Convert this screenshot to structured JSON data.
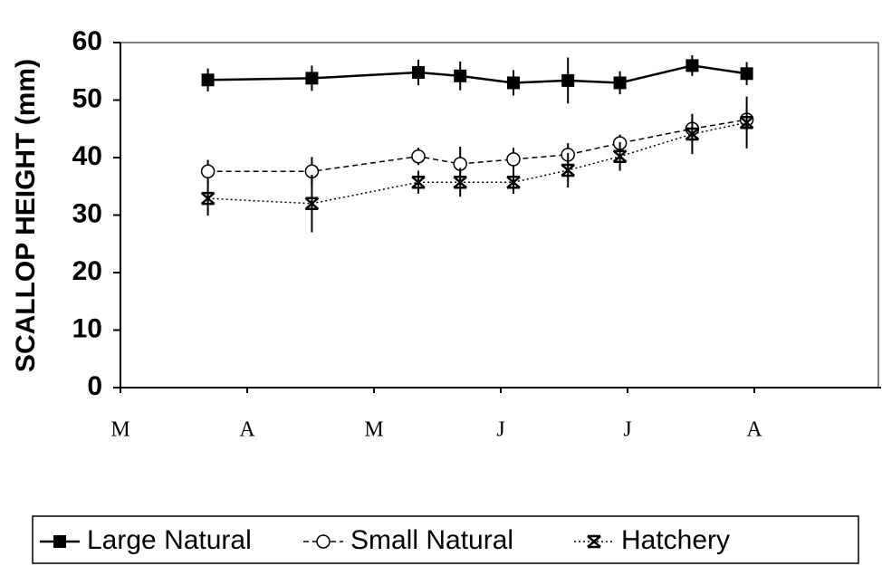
{
  "chart_data": {
    "type": "line",
    "ylabel": "SCALLOP HEIGHT (mm)",
    "xlim": [
      0,
      6
    ],
    "xticks": [
      {
        "value": 0,
        "label": "M"
      },
      {
        "value": 1,
        "label": "A"
      },
      {
        "value": 2,
        "label": "M"
      },
      {
        "value": 3,
        "label": "J"
      },
      {
        "value": 4,
        "label": "J"
      },
      {
        "value": 5,
        "label": "A"
      }
    ],
    "ylim": [
      0,
      60
    ],
    "yticks": [
      0,
      10,
      20,
      30,
      40,
      50,
      60
    ],
    "x": [
      0.69,
      1.51,
      2.35,
      2.68,
      3.1,
      3.53,
      3.94,
      4.51,
      4.94
    ],
    "series": [
      {
        "name": "Large Natural",
        "color": "#000000",
        "line_style": "solid",
        "marker": "square",
        "values": [
          53.5,
          53.8,
          54.8,
          54.2,
          53,
          53.4,
          53,
          56,
          54.6
        ],
        "errors": [
          2,
          2.2,
          2.2,
          2.5,
          2.2,
          4,
          2,
          1.8,
          2
        ]
      },
      {
        "name": "Small Natural",
        "color": "#000000",
        "line_style": "dashed",
        "marker": "circle",
        "values": [
          37.6,
          37.6,
          40.2,
          38.9,
          39.7,
          40.5,
          42.5,
          45,
          46.6
        ],
        "errors": [
          2,
          2.5,
          1.5,
          3,
          2,
          2,
          1.5,
          2,
          2
        ]
      },
      {
        "name": "Hatchery",
        "color": "#000000",
        "line_style": "dotted",
        "marker": "x",
        "values": [
          32.9,
          32,
          35.7,
          35.7,
          35.7,
          37.8,
          40.2,
          44.1,
          46.1
        ],
        "errors": [
          3,
          5,
          2,
          2.5,
          2,
          3,
          2.5,
          3.5,
          4.5
        ]
      }
    ]
  }
}
